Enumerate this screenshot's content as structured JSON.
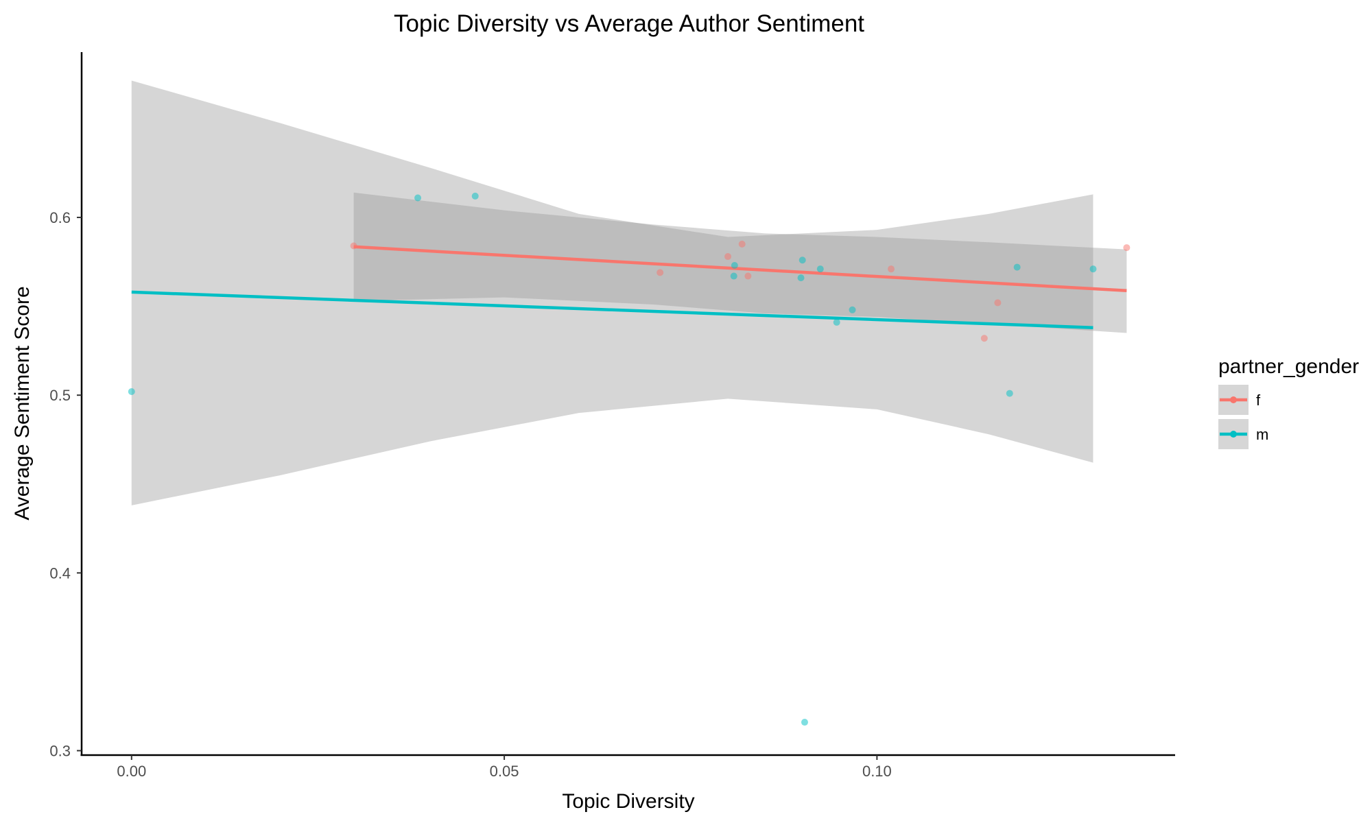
{
  "chart_data": {
    "type": "scatter",
    "title": "Topic Diversity vs Average Author Sentiment",
    "xlabel": "Topic Diversity",
    "ylabel": "Average Sentiment Score",
    "xlim": [
      -0.0067,
      0.14
    ],
    "ylim": [
      0.2975,
      0.693
    ],
    "x_ticks": [
      0.0,
      0.05,
      0.1
    ],
    "x_tick_labels": [
      "0.00",
      "0.05",
      "0.10"
    ],
    "y_ticks": [
      0.3,
      0.4,
      0.5,
      0.6
    ],
    "y_tick_labels": [
      "0.3",
      "0.4",
      "0.5",
      "0.6"
    ],
    "grid": false,
    "legend": {
      "title": "partner_gender",
      "placement": "right"
    },
    "series": [
      {
        "name": "f",
        "color": "#f8766d",
        "points": [
          {
            "x": 0.0298,
            "y": 0.584
          },
          {
            "x": 0.0709,
            "y": 0.569
          },
          {
            "x": 0.08,
            "y": 0.578
          },
          {
            "x": 0.0819,
            "y": 0.585
          },
          {
            "x": 0.0827,
            "y": 0.567
          },
          {
            "x": 0.1019,
            "y": 0.571
          },
          {
            "x": 0.1144,
            "y": 0.532
          },
          {
            "x": 0.1162,
            "y": 0.552
          },
          {
            "x": 0.1335,
            "y": 0.583
          }
        ],
        "fit": {
          "x": [
            0.0298,
            0.1335
          ],
          "y": [
            0.5835,
            0.5588
          ]
        },
        "ci_band": {
          "x": [
            0.0298,
            0.05,
            0.07,
            0.085,
            0.1,
            0.115,
            0.1335
          ],
          "upper": [
            0.614,
            0.604,
            0.596,
            0.591,
            0.589,
            0.586,
            0.582
          ],
          "lower": [
            0.553,
            0.555,
            0.551,
            0.546,
            0.544,
            0.54,
            0.535
          ]
        }
      },
      {
        "name": "m",
        "color": "#00bfc4",
        "points": [
          {
            "x": 0.0,
            "y": 0.502
          },
          {
            "x": 0.0384,
            "y": 0.611
          },
          {
            "x": 0.0461,
            "y": 0.612
          },
          {
            "x": 0.0809,
            "y": 0.573
          },
          {
            "x": 0.0808,
            "y": 0.567
          },
          {
            "x": 0.09,
            "y": 0.576
          },
          {
            "x": 0.0898,
            "y": 0.566
          },
          {
            "x": 0.0924,
            "y": 0.571
          },
          {
            "x": 0.0946,
            "y": 0.541
          },
          {
            "x": 0.0967,
            "y": 0.548
          },
          {
            "x": 0.0903,
            "y": 0.316
          },
          {
            "x": 0.1178,
            "y": 0.501
          },
          {
            "x": 0.1188,
            "y": 0.572
          },
          {
            "x": 0.129,
            "y": 0.571
          }
        ],
        "fit": {
          "x": [
            0.0,
            0.129
          ],
          "y": [
            0.558,
            0.538
          ]
        },
        "ci_band": {
          "x": [
            0.0,
            0.02,
            0.04,
            0.06,
            0.08,
            0.1,
            0.115,
            0.129
          ],
          "upper": [
            0.677,
            0.653,
            0.628,
            0.602,
            0.589,
            0.593,
            0.602,
            0.613
          ],
          "lower": [
            0.438,
            0.455,
            0.474,
            0.49,
            0.498,
            0.492,
            0.478,
            0.462
          ]
        }
      }
    ]
  }
}
